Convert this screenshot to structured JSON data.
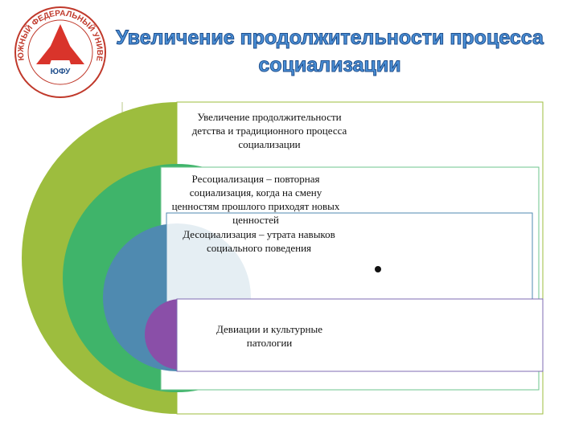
{
  "logo": {
    "ring_text": "ЮЖНЫЙ ФЕДЕРАЛЬНЫЙ УНИВЕРСИТЕТ",
    "abbr": "ЮФУ"
  },
  "title": "Увеличение продолжительности процесса социализации",
  "items": [
    "Увеличение продолжительности детства и традиционного процесса социализации",
    "Ресоциализация – повторная социализация, когда на смену ценностям прошлого приходят новых ценностей",
    "Десоциализация – утрата навыков социального поведения",
    "Девиации и культурные патологии"
  ]
}
